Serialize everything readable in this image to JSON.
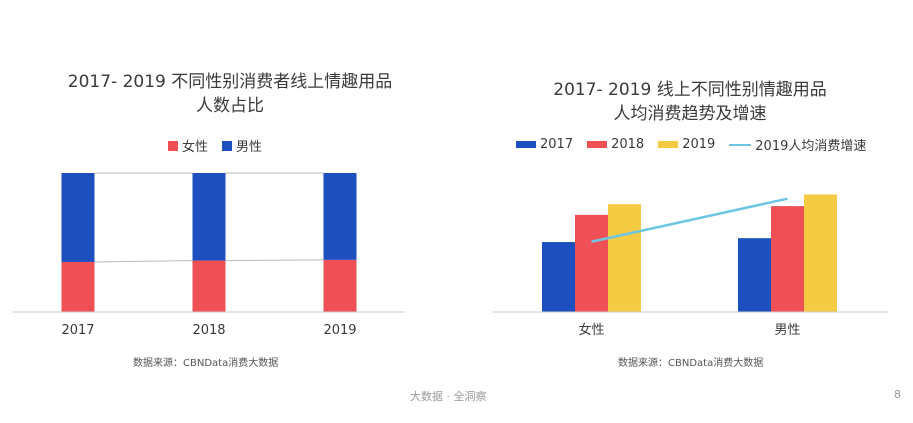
{
  "left_chart": {
    "title_line1": "2017- 2019 不同性别消费者线上情趣用品",
    "title_line2": "人数占比",
    "legend": [
      {
        "label": "女性",
        "color": "#EF5055"
      },
      {
        "label": "男性",
        "color": "#1E4FBF"
      }
    ],
    "source": "数据来源：CBNData消费大数据"
  },
  "right_chart": {
    "title_line1": "2017- 2019 线上不同性别情趣用品",
    "title_line2": "人均消费趋势及增速",
    "legend": [
      {
        "label": "2017",
        "color": "#1E4FBF",
        "kind": "bar"
      },
      {
        "label": "2018",
        "color": "#EF5055",
        "kind": "bar"
      },
      {
        "label": "2019",
        "color": "#F5CB43",
        "kind": "bar"
      },
      {
        "label": "2019人均消费增速",
        "color": "#6EC6E3",
        "kind": "line"
      }
    ],
    "source": "数据来源：CBNData消费大数据"
  },
  "footer": {
    "center": "大数据 · 全洞察",
    "page_number": "8"
  },
  "chart_data": [
    {
      "type": "bar",
      "stacked": true,
      "normalized": true,
      "categories": [
        "2017",
        "2018",
        "2019"
      ],
      "series": [
        {
          "name": "女性",
          "color": "#EF5055",
          "values": [
            36,
            37,
            37.5
          ]
        },
        {
          "name": "男性",
          "color": "#1E4FBF",
          "values": [
            64,
            63,
            62.5
          ]
        }
      ],
      "ylim": [
        0,
        100
      ],
      "grid": false,
      "legend_position": "top"
    },
    {
      "type": "bar",
      "categories": [
        "女性",
        "男性"
      ],
      "series": [
        {
          "name": "2017",
          "color": "#1E4FBF",
          "values": [
            72,
            76
          ]
        },
        {
          "name": "2018",
          "color": "#EF5055",
          "values": [
            100,
            109
          ]
        },
        {
          "name": "2019",
          "color": "#F5CB43",
          "values": [
            111,
            121
          ]
        }
      ],
      "line_series": {
        "name": "2019人均消费增速",
        "color": "#6EC6E3",
        "values": [
          11,
          30
        ]
      },
      "ylim": [
        0,
        140
      ],
      "line_ylim": [
        -20,
        40
      ],
      "grid": false,
      "legend_position": "top"
    }
  ]
}
